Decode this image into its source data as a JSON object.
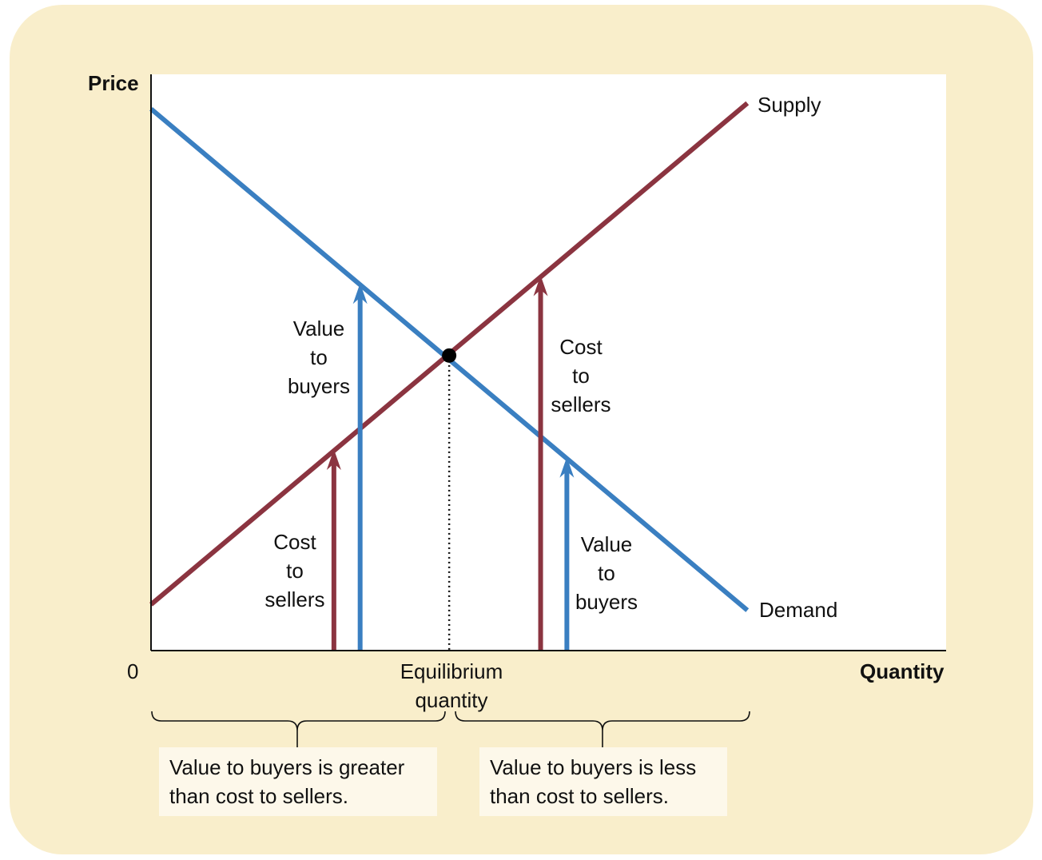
{
  "colors": {
    "panel_background": "#f9eecb",
    "note_background": "#fdf8ea",
    "demand": "#3a7fc1",
    "supply": "#8b3440",
    "axis": "#111111"
  },
  "chart_data": {
    "type": "line",
    "ylabel": "Price",
    "xlabel": "Quantity",
    "origin_label": "0",
    "xlim": [
      0,
      100
    ],
    "ylim": [
      0,
      100
    ],
    "series": [
      {
        "name": "Supply",
        "color": "#8b3440",
        "points": [
          [
            0,
            8
          ],
          [
            75,
            95
          ]
        ]
      },
      {
        "name": "Demand",
        "color": "#3a7fc1",
        "points": [
          [
            0,
            94
          ],
          [
            75,
            7
          ]
        ]
      }
    ],
    "equilibrium": {
      "x": 37.5,
      "y": 51.2,
      "label": "Equilibrium quantity"
    },
    "arrows": [
      {
        "series": "Supply",
        "x": 23,
        "label": [
          "Cost",
          "to",
          "sellers"
        ]
      },
      {
        "series": "Demand",
        "x": 26.3,
        "label": [
          "Value",
          "to",
          "buyers"
        ]
      },
      {
        "series": "Supply",
        "x": 49,
        "label": [
          "Cost",
          "to",
          "sellers"
        ]
      },
      {
        "series": "Demand",
        "x": 52.3,
        "label": [
          "Value",
          "to",
          "buyers"
        ]
      }
    ],
    "annotations": [
      "Value to buyers is greater than cost to sellers.",
      "Value to buyers is less than cost to sellers."
    ]
  },
  "labels": {
    "price": "Price",
    "quantity": "Quantity",
    "origin": "0",
    "supply": "Supply",
    "demand": "Demand",
    "equilibrium_line1": "Equilibrium",
    "equilibrium_line2": "quantity",
    "arrow_left_cost": [
      "Cost",
      "to",
      "sellers"
    ],
    "arrow_left_value": [
      "Value",
      "to",
      "buyers"
    ],
    "arrow_right_cost": [
      "Cost",
      "to",
      "sellers"
    ],
    "arrow_right_value": [
      "Value",
      "to",
      "buyers"
    ],
    "note_left_line1": "Value to buyers is greater",
    "note_left_line2": "than cost to sellers.",
    "note_right_line1": "Value to buyers is less",
    "note_right_line2": "than cost to sellers."
  }
}
